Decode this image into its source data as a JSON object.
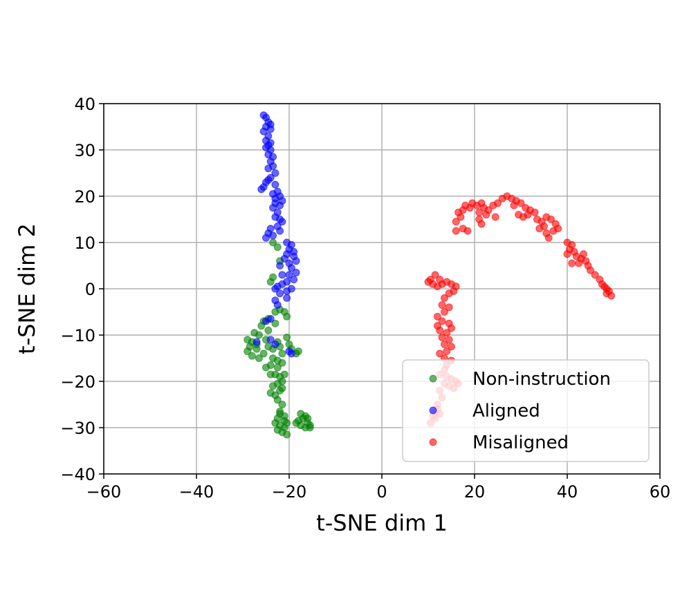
{
  "chart_data": {
    "type": "scatter",
    "title": "",
    "xlabel": "t-SNE dim 1",
    "ylabel": "t-SNE dim 2",
    "xlim": [
      -60,
      60
    ],
    "ylim": [
      -40,
      40
    ],
    "xticks": [
      -60,
      -40,
      -20,
      0,
      20,
      40,
      60
    ],
    "yticks": [
      -40,
      -30,
      -20,
      -10,
      0,
      10,
      20,
      30,
      40
    ],
    "xtick_labels": [
      "−60",
      "−40",
      "−20",
      "0",
      "20",
      "40",
      "60"
    ],
    "ytick_labels": [
      "−40",
      "−30",
      "−20",
      "−10",
      "0",
      "10",
      "20",
      "30",
      "40"
    ],
    "grid": true,
    "legend_position": "lower-right",
    "series": [
      {
        "name": "Non-instruction",
        "color": "#008000",
        "points": [
          [
            -24.0,
            1.5
          ],
          [
            -23.5,
            2.5
          ],
          [
            -22.0,
            6.0
          ],
          [
            -22.5,
            9.0
          ],
          [
            -23.5,
            10.0
          ],
          [
            -23.0,
            -5.0
          ],
          [
            -22.0,
            -4.5
          ],
          [
            -21.0,
            -5.0
          ],
          [
            -20.5,
            -6.0
          ],
          [
            -24.5,
            -6.5
          ],
          [
            -25.5,
            -7.0
          ],
          [
            -26.0,
            -8.0
          ],
          [
            -24.5,
            -9.0
          ],
          [
            -26.5,
            -10.0
          ],
          [
            -25.0,
            -11.0
          ],
          [
            -27.5,
            -9.5
          ],
          [
            -28.0,
            -11.5
          ],
          [
            -29.0,
            -11.0
          ],
          [
            -28.5,
            -12.5
          ],
          [
            -29.0,
            -13.5
          ],
          [
            -28.0,
            -14.5
          ],
          [
            -27.0,
            -13.0
          ],
          [
            -26.5,
            -15.0
          ],
          [
            -25.5,
            -14.0
          ],
          [
            -24.5,
            -12.5
          ],
          [
            -23.5,
            -13.0
          ],
          [
            -22.5,
            -11.5
          ],
          [
            -22.0,
            -12.5
          ],
          [
            -21.5,
            -14.0
          ],
          [
            -22.5,
            -15.5
          ],
          [
            -23.5,
            -15.0
          ],
          [
            -24.0,
            -16.5
          ],
          [
            -22.5,
            -17.0
          ],
          [
            -21.5,
            -16.0
          ],
          [
            -21.0,
            -18.5
          ],
          [
            -22.0,
            -19.0
          ],
          [
            -23.0,
            -18.5
          ],
          [
            -22.5,
            -20.5
          ],
          [
            -23.5,
            -21.0
          ],
          [
            -24.0,
            -22.5
          ],
          [
            -23.0,
            -23.0
          ],
          [
            -22.0,
            -22.0
          ],
          [
            -21.5,
            -21.5
          ],
          [
            -22.5,
            -24.0
          ],
          [
            -21.5,
            -25.0
          ],
          [
            -22.0,
            -26.5
          ],
          [
            -21.0,
            -27.5
          ],
          [
            -22.5,
            -28.0
          ],
          [
            -23.0,
            -29.0
          ],
          [
            -22.0,
            -29.5
          ],
          [
            -21.0,
            -30.0
          ],
          [
            -20.5,
            -29.0
          ],
          [
            -21.5,
            -31.0
          ],
          [
            -22.5,
            -30.5
          ],
          [
            -20.5,
            -31.5
          ],
          [
            -21.0,
            -28.5
          ],
          [
            -22.0,
            -27.0
          ],
          [
            -17.5,
            -27.0
          ],
          [
            -17.0,
            -28.0
          ],
          [
            -16.5,
            -27.5
          ],
          [
            -16.0,
            -29.0
          ],
          [
            -15.5,
            -30.0
          ],
          [
            -16.5,
            -30.0
          ],
          [
            -17.5,
            -29.5
          ],
          [
            -18.0,
            -28.5
          ],
          [
            -18.5,
            -29.0
          ],
          [
            -15.5,
            -29.5
          ],
          [
            -16.0,
            -28.0
          ],
          [
            -18.5,
            -14.0
          ],
          [
            -18.0,
            -13.5
          ],
          [
            -20.5,
            -10.5
          ],
          [
            -20.0,
            -12.0
          ],
          [
            -24.0,
            -18.5
          ],
          [
            -21.5,
            -20.0
          ],
          [
            -19.5,
            -13.0
          ],
          [
            -23.0,
            -7.5
          ],
          [
            -25.0,
            -17.0
          ],
          [
            -27.0,
            -12.0
          ]
        ]
      },
      {
        "name": "Aligned",
        "color": "#0000ff",
        "points": [
          [
            -25.5,
            37.5
          ],
          [
            -25.0,
            37.0
          ],
          [
            -24.5,
            36.0
          ],
          [
            -25.0,
            35.0
          ],
          [
            -24.0,
            34.5
          ],
          [
            -25.5,
            34.0
          ],
          [
            -24.5,
            33.0
          ],
          [
            -25.0,
            32.0
          ],
          [
            -24.0,
            31.5
          ],
          [
            -25.0,
            30.5
          ],
          [
            -24.0,
            30.0
          ],
          [
            -24.5,
            29.0
          ],
          [
            -23.5,
            28.5
          ],
          [
            -24.0,
            27.5
          ],
          [
            -23.5,
            26.5
          ],
          [
            -24.5,
            26.0
          ],
          [
            -23.0,
            25.0
          ],
          [
            -24.0,
            24.0
          ],
          [
            -25.0,
            23.0
          ],
          [
            -25.5,
            22.0
          ],
          [
            -26.0,
            21.5
          ],
          [
            -23.0,
            22.5
          ],
          [
            -22.5,
            21.0
          ],
          [
            -23.5,
            20.5
          ],
          [
            -22.0,
            20.0
          ],
          [
            -23.0,
            19.5
          ],
          [
            -21.5,
            19.0
          ],
          [
            -22.0,
            18.0
          ],
          [
            -23.5,
            17.5
          ],
          [
            -22.5,
            16.5
          ],
          [
            -23.0,
            15.5
          ],
          [
            -22.0,
            15.0
          ],
          [
            -21.5,
            14.5
          ],
          [
            -22.5,
            13.5
          ],
          [
            -24.0,
            13.0
          ],
          [
            -24.5,
            12.0
          ],
          [
            -25.0,
            11.0
          ],
          [
            -23.5,
            11.5
          ],
          [
            -22.0,
            12.5
          ],
          [
            -20.5,
            10.0
          ],
          [
            -19.5,
            9.5
          ],
          [
            -20.0,
            8.5
          ],
          [
            -19.0,
            8.0
          ],
          [
            -20.5,
            7.5
          ],
          [
            -19.0,
            7.0
          ],
          [
            -18.5,
            6.0
          ],
          [
            -20.0,
            5.5
          ],
          [
            -19.5,
            4.5
          ],
          [
            -18.5,
            3.5
          ],
          [
            -20.0,
            3.0
          ],
          [
            -19.0,
            2.0
          ],
          [
            -20.5,
            1.5
          ],
          [
            -21.5,
            1.0
          ],
          [
            -22.5,
            0.5
          ],
          [
            -23.0,
            0.0
          ],
          [
            -22.0,
            -1.0
          ],
          [
            -20.5,
            -0.5
          ],
          [
            -19.5,
            0.0
          ],
          [
            -21.5,
            3.0
          ],
          [
            -22.0,
            5.0
          ],
          [
            -21.0,
            6.5
          ],
          [
            -20.5,
            -2.0
          ],
          [
            -23.0,
            -2.5
          ],
          [
            -22.5,
            -3.5
          ],
          [
            -24.0,
            -6.5
          ],
          [
            -25.0,
            -7.0
          ],
          [
            -27.0,
            -11.5
          ],
          [
            -24.0,
            -11.0
          ],
          [
            -23.0,
            -12.0
          ],
          [
            -19.5,
            -14.0
          ],
          [
            -20.0,
            -13.5
          ],
          [
            -24.5,
            23.5
          ],
          [
            -24.0,
            35.5
          ],
          [
            -24.5,
            31.0
          ],
          [
            -23.0,
            18.5
          ]
        ]
      },
      {
        "name": "Misaligned",
        "color": "#ff0000",
        "points": [
          [
            16.0,
            14.5
          ],
          [
            17.0,
            15.5
          ],
          [
            16.5,
            16.5
          ],
          [
            17.5,
            17.0
          ],
          [
            18.0,
            18.0
          ],
          [
            19.0,
            17.5
          ],
          [
            19.5,
            18.5
          ],
          [
            20.5,
            18.0
          ],
          [
            21.5,
            18.5
          ],
          [
            22.0,
            17.5
          ],
          [
            21.0,
            16.5
          ],
          [
            22.5,
            16.0
          ],
          [
            23.0,
            17.0
          ],
          [
            24.0,
            18.0
          ],
          [
            25.0,
            18.5
          ],
          [
            26.0,
            19.5
          ],
          [
            27.0,
            20.0
          ],
          [
            28.0,
            19.5
          ],
          [
            29.0,
            19.0
          ],
          [
            28.5,
            18.0
          ],
          [
            30.0,
            18.5
          ],
          [
            31.0,
            17.5
          ],
          [
            32.0,
            17.0
          ],
          [
            33.0,
            16.5
          ],
          [
            31.5,
            16.0
          ],
          [
            30.5,
            15.5
          ],
          [
            29.5,
            16.0
          ],
          [
            33.5,
            15.0
          ],
          [
            34.5,
            14.5
          ],
          [
            35.0,
            13.5
          ],
          [
            34.0,
            13.0
          ],
          [
            35.5,
            12.0
          ],
          [
            36.0,
            11.0
          ],
          [
            37.0,
            12.5
          ],
          [
            37.5,
            14.0
          ],
          [
            36.5,
            15.0
          ],
          [
            35.5,
            15.5
          ],
          [
            38.0,
            13.0
          ],
          [
            16.0,
            12.5
          ],
          [
            17.5,
            13.0
          ],
          [
            18.5,
            12.5
          ],
          [
            21.5,
            14.0
          ],
          [
            21.0,
            15.0
          ],
          [
            24.5,
            15.5
          ],
          [
            40.0,
            10.0
          ],
          [
            41.0,
            9.5
          ],
          [
            40.5,
            8.5
          ],
          [
            41.5,
            8.0
          ],
          [
            40.0,
            7.5
          ],
          [
            42.0,
            7.0
          ],
          [
            43.0,
            6.5
          ],
          [
            42.5,
            5.5
          ],
          [
            44.0,
            6.0
          ],
          [
            44.5,
            5.0
          ],
          [
            45.0,
            4.0
          ],
          [
            46.0,
            3.0
          ],
          [
            47.0,
            2.0
          ],
          [
            47.5,
            1.0
          ],
          [
            48.0,
            0.5
          ],
          [
            48.5,
            0.0
          ],
          [
            49.0,
            -0.5
          ],
          [
            49.5,
            -1.5
          ],
          [
            48.5,
            -1.0
          ],
          [
            43.5,
            7.5
          ],
          [
            41.0,
            5.5
          ],
          [
            10.5,
            2.0
          ],
          [
            11.0,
            1.0
          ],
          [
            12.0,
            0.5
          ],
          [
            11.5,
            3.0
          ],
          [
            12.5,
            2.0
          ],
          [
            10.0,
            1.5
          ],
          [
            13.0,
            1.0
          ],
          [
            14.0,
            1.5
          ],
          [
            15.0,
            1.0
          ],
          [
            16.0,
            0.5
          ],
          [
            15.5,
            -0.5
          ],
          [
            14.5,
            -1.0
          ],
          [
            13.5,
            -2.0
          ],
          [
            13.0,
            -3.5
          ],
          [
            14.5,
            -4.0
          ],
          [
            13.5,
            -5.0
          ],
          [
            12.0,
            -6.0
          ],
          [
            13.0,
            -7.0
          ],
          [
            14.5,
            -7.5
          ],
          [
            15.0,
            -8.5
          ],
          [
            14.0,
            -9.5
          ],
          [
            12.5,
            -9.0
          ],
          [
            13.0,
            -10.5
          ],
          [
            14.5,
            -11.0
          ],
          [
            13.5,
            -12.0
          ],
          [
            15.0,
            -12.5
          ],
          [
            14.0,
            -13.5
          ],
          [
            12.5,
            -14.0
          ],
          [
            13.5,
            -15.0
          ],
          [
            15.0,
            -15.5
          ],
          [
            14.0,
            -16.5
          ],
          [
            12.0,
            -8.0
          ],
          [
            13.5,
            -17.5
          ],
          [
            12.5,
            -18.5
          ],
          [
            14.0,
            -19.0
          ],
          [
            15.0,
            -19.5
          ],
          [
            16.0,
            -20.0
          ],
          [
            13.5,
            -20.5
          ],
          [
            14.5,
            -21.0
          ],
          [
            15.5,
            -21.5
          ],
          [
            16.5,
            -20.5
          ],
          [
            12.5,
            -22.0
          ],
          [
            13.0,
            -23.5
          ],
          [
            12.0,
            -25.0
          ],
          [
            11.5,
            -26.5
          ],
          [
            12.5,
            -27.0
          ],
          [
            11.0,
            -27.5
          ],
          [
            11.5,
            -28.0
          ],
          [
            10.5,
            -29.0
          ],
          [
            12.0,
            -26.0
          ]
        ]
      }
    ]
  }
}
